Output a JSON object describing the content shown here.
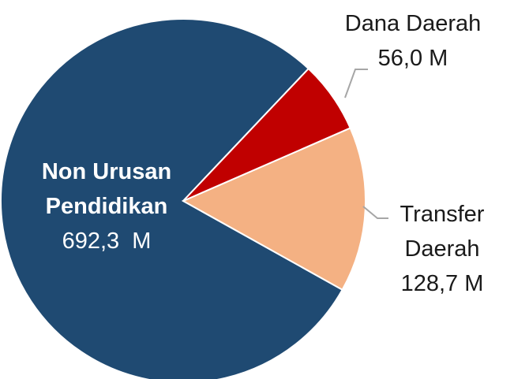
{
  "chart_data": {
    "type": "pie",
    "categories": [
      "Dana Daerah",
      "Transfer Daerah",
      "Non Urusan Pendidikan"
    ],
    "values": [
      56.0,
      128.7,
      692.3
    ],
    "value_labels": [
      "56,0 M",
      "128,7 M",
      "692,3  M"
    ],
    "colors": [
      "#c00000",
      "#f4b183",
      "#1f4a72"
    ]
  }
}
